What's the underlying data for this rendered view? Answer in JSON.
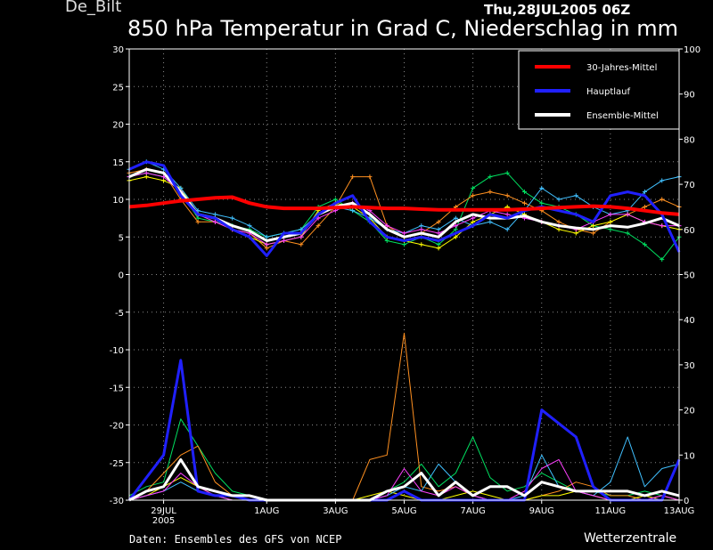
{
  "header": {
    "station": "De_Bilt",
    "datetime": "Thu,28JUL2005 06Z",
    "title": "850 hPa Temperatur in Grad C, Niederschlag in mm"
  },
  "footer": {
    "source": "Daten: Ensembles des GFS von NCEP",
    "brand": "Wetterzentrale"
  },
  "chart_data": {
    "type": "line",
    "grid": true,
    "legend_position": "top-right",
    "x_labels": [
      {
        "day": 1.0,
        "label": "29JUL",
        "sub": "2005"
      },
      {
        "day": 4.0,
        "label": "1AUG"
      },
      {
        "day": 6.0,
        "label": "3AUG"
      },
      {
        "day": 8.0,
        "label": "5AUG"
      },
      {
        "day": 10.0,
        "label": "7AUG"
      },
      {
        "day": 12.0,
        "label": "9AUG"
      },
      {
        "day": 14.0,
        "label": "11AUG"
      },
      {
        "day": 16.0,
        "label": "13AUG"
      }
    ],
    "xlim": [
      0.0,
      16.0
    ],
    "y_left": {
      "ylim": [
        -30,
        30
      ],
      "ticks": [
        30,
        25,
        20,
        15,
        10,
        5,
        0,
        -5,
        -10,
        -15,
        -20,
        -25,
        -30
      ]
    },
    "y_right": {
      "ylim": [
        0,
        100
      ],
      "ticks": [
        100,
        90,
        80,
        70,
        60,
        50,
        40,
        30,
        20,
        10,
        0
      ]
    },
    "x_days": [
      0.0,
      0.5,
      1.0,
      1.5,
      2.0,
      2.5,
      3.0,
      3.5,
      4.0,
      4.5,
      5.0,
      5.5,
      6.0,
      6.5,
      7.0,
      7.5,
      8.0,
      8.5,
      9.0,
      9.5,
      10.0,
      10.5,
      11.0,
      11.5,
      12.0,
      12.5,
      13.0,
      13.5,
      14.0,
      14.5,
      15.0,
      15.5,
      16.0
    ],
    "legend": [
      {
        "name": "30-Jahres-Mittel",
        "color": "#ff0000"
      },
      {
        "name": "Hauptlauf",
        "color": "#2020ff"
      },
      {
        "name": "Ensemble-Mittel",
        "color": "#ffffff"
      }
    ],
    "series": [
      {
        "name": "30-Jahres-Mittel",
        "axis": "left",
        "color": "#ff0000",
        "width": 4,
        "values": [
          9.0,
          9.2,
          9.5,
          9.8,
          10.0,
          10.2,
          10.3,
          9.5,
          9.0,
          8.8,
          8.8,
          8.8,
          8.9,
          9.0,
          8.9,
          8.8,
          8.8,
          8.7,
          8.6,
          8.6,
          8.6,
          8.6,
          8.6,
          8.7,
          8.8,
          8.9,
          9.0,
          9.1,
          9.0,
          8.8,
          8.5,
          8.2,
          8.0
        ]
      },
      {
        "name": "Ensemble-Mittel",
        "axis": "left",
        "color": "#ffffff",
        "width": 3,
        "values": [
          13.0,
          14.0,
          13.5,
          11.0,
          8.0,
          7.5,
          6.5,
          5.8,
          4.5,
          5.0,
          5.5,
          8.0,
          9.0,
          9.5,
          8.0,
          6.0,
          5.0,
          5.5,
          5.0,
          7.0,
          8.0,
          7.5,
          7.5,
          7.8,
          7.0,
          6.5,
          6.2,
          6.0,
          6.5,
          6.3,
          6.8,
          7.5,
          6.5
        ]
      },
      {
        "name": "Hauptlauf",
        "axis": "left",
        "color": "#2020ff",
        "width": 3,
        "values": [
          14.0,
          15.0,
          14.5,
          10.5,
          8.0,
          7.5,
          6.0,
          5.0,
          2.5,
          5.5,
          5.5,
          8.0,
          9.5,
          10.5,
          7.0,
          5.0,
          4.5,
          5.0,
          4.5,
          5.5,
          6.5,
          8.0,
          7.5,
          8.5,
          9.0,
          8.5,
          8.0,
          7.0,
          10.5,
          11.0,
          10.5,
          8.0,
          3.0
        ]
      },
      {
        "name": "Hauptlauf",
        "axis": "right",
        "color": "#2020ff",
        "width": 3,
        "values": [
          0,
          5,
          10,
          31,
          2,
          1,
          1,
          0,
          0,
          0,
          0,
          0,
          0,
          0,
          0,
          0,
          2,
          0,
          0,
          0,
          0,
          0,
          0,
          0,
          20,
          17,
          14,
          3,
          0,
          0,
          0,
          0,
          9
        ]
      },
      {
        "name": "Ensemble-Mittel",
        "axis": "right",
        "color": "#ffffff",
        "width": 3,
        "values": [
          0,
          2,
          3,
          9,
          3,
          2,
          1,
          1,
          0,
          0,
          0,
          0,
          0,
          0,
          0,
          2,
          3,
          6,
          1,
          4,
          1,
          3,
          3,
          1,
          4,
          3,
          2,
          2,
          2,
          2,
          1,
          2,
          1
        ]
      },
      {
        "name": "",
        "axis": "left",
        "color": "#00e060",
        "width": 1,
        "values": [
          13.0,
          13.5,
          13.0,
          11.0,
          7.5,
          7.0,
          6.5,
          6.0,
          5.0,
          5.5,
          6.0,
          9.0,
          10.0,
          8.5,
          7.0,
          4.5,
          4.0,
          5.0,
          4.0,
          6.0,
          11.5,
          13.0,
          13.5,
          11.0,
          9.5,
          9.0,
          8.0,
          6.5,
          6.0,
          5.5,
          4.0,
          2.0,
          5.0
        ]
      },
      {
        "name": "",
        "axis": "right",
        "color": "#00e060",
        "width": 1,
        "values": [
          1,
          3,
          4,
          18,
          12,
          6,
          2,
          1,
          0,
          0,
          0,
          0,
          0,
          0,
          0,
          2,
          4,
          8,
          3,
          6,
          14,
          5,
          2,
          3,
          6,
          4,
          2,
          2,
          1,
          1,
          2,
          1,
          0
        ]
      },
      {
        "name": "",
        "axis": "left",
        "color": "#ff9020",
        "width": 1,
        "values": [
          13.5,
          14.0,
          13.5,
          10.0,
          7.0,
          7.0,
          6.0,
          5.5,
          3.5,
          4.5,
          4.0,
          6.5,
          9.0,
          13.0,
          13.0,
          6.5,
          5.0,
          5.5,
          7.0,
          9.0,
          10.5,
          11.0,
          10.5,
          9.5,
          8.5,
          7.0,
          6.0,
          5.5,
          7.0,
          8.0,
          9.0,
          10.0,
          9.0
        ]
      },
      {
        "name": "",
        "axis": "right",
        "color": "#ff9020",
        "width": 1,
        "values": [
          0,
          2,
          6,
          10,
          12,
          4,
          1,
          0,
          0,
          0,
          0,
          0,
          0,
          0,
          9,
          10,
          37,
          3,
          2,
          3,
          1,
          0,
          0,
          0,
          1,
          2,
          4,
          3,
          1,
          1,
          0,
          1,
          0
        ]
      },
      {
        "name": "",
        "axis": "left",
        "color": "#ffff00",
        "width": 1,
        "values": [
          12.5,
          13.0,
          12.5,
          11.5,
          8.0,
          7.5,
          6.0,
          5.0,
          4.0,
          4.5,
          5.0,
          8.5,
          9.5,
          9.0,
          7.5,
          5.0,
          4.5,
          4.0,
          3.5,
          5.0,
          7.0,
          8.0,
          9.0,
          8.0,
          7.0,
          6.0,
          5.5,
          6.5,
          7.0,
          8.0,
          7.0,
          6.5,
          6.0
        ]
      },
      {
        "name": "",
        "axis": "right",
        "color": "#ffff00",
        "width": 1,
        "values": [
          0,
          1,
          3,
          5,
          3,
          1,
          0,
          0,
          0,
          0,
          0,
          0,
          0,
          0,
          1,
          2,
          1,
          0,
          0,
          1,
          2,
          1,
          0,
          0,
          1,
          1,
          2,
          1,
          0,
          0,
          1,
          0,
          0
        ]
      },
      {
        "name": "",
        "axis": "left",
        "color": "#40c0ff",
        "width": 1,
        "values": [
          14.0,
          15.0,
          14.0,
          11.5,
          8.5,
          8.0,
          7.5,
          6.5,
          5.0,
          5.5,
          6.0,
          8.0,
          9.0,
          8.5,
          7.5,
          6.0,
          5.5,
          6.5,
          6.0,
          7.5,
          6.5,
          7.0,
          6.0,
          8.5,
          11.5,
          10.0,
          10.5,
          9.0,
          8.0,
          8.5,
          11.0,
          12.5,
          13.0
        ]
      },
      {
        "name": "",
        "axis": "right",
        "color": "#40c0ff",
        "width": 1,
        "values": [
          0,
          1,
          2,
          4,
          2,
          1,
          0,
          0,
          0,
          0,
          0,
          0,
          0,
          0,
          0,
          1,
          3,
          2,
          8,
          4,
          1,
          0,
          0,
          1,
          10,
          3,
          2,
          1,
          4,
          14,
          3,
          7,
          8
        ]
      },
      {
        "name": "",
        "axis": "left",
        "color": "#ff40ff",
        "width": 1,
        "values": [
          13.0,
          13.5,
          13.0,
          11.0,
          8.0,
          7.0,
          6.0,
          5.5,
          4.0,
          4.5,
          5.0,
          7.5,
          8.5,
          9.5,
          8.5,
          6.5,
          5.5,
          6.0,
          5.5,
          6.5,
          7.5,
          8.5,
          8.0,
          7.5,
          7.0,
          6.5,
          6.0,
          7.0,
          8.0,
          8.0,
          7.0,
          6.5,
          6.5
        ]
      },
      {
        "name": "",
        "axis": "right",
        "color": "#ff40ff",
        "width": 1,
        "values": [
          0,
          1,
          2,
          6,
          3,
          1,
          0,
          0,
          0,
          0,
          0,
          0,
          0,
          0,
          0,
          1,
          7,
          2,
          1,
          3,
          1,
          0,
          0,
          2,
          7,
          9,
          2,
          1,
          0,
          0,
          0,
          1,
          0
        ]
      }
    ]
  }
}
